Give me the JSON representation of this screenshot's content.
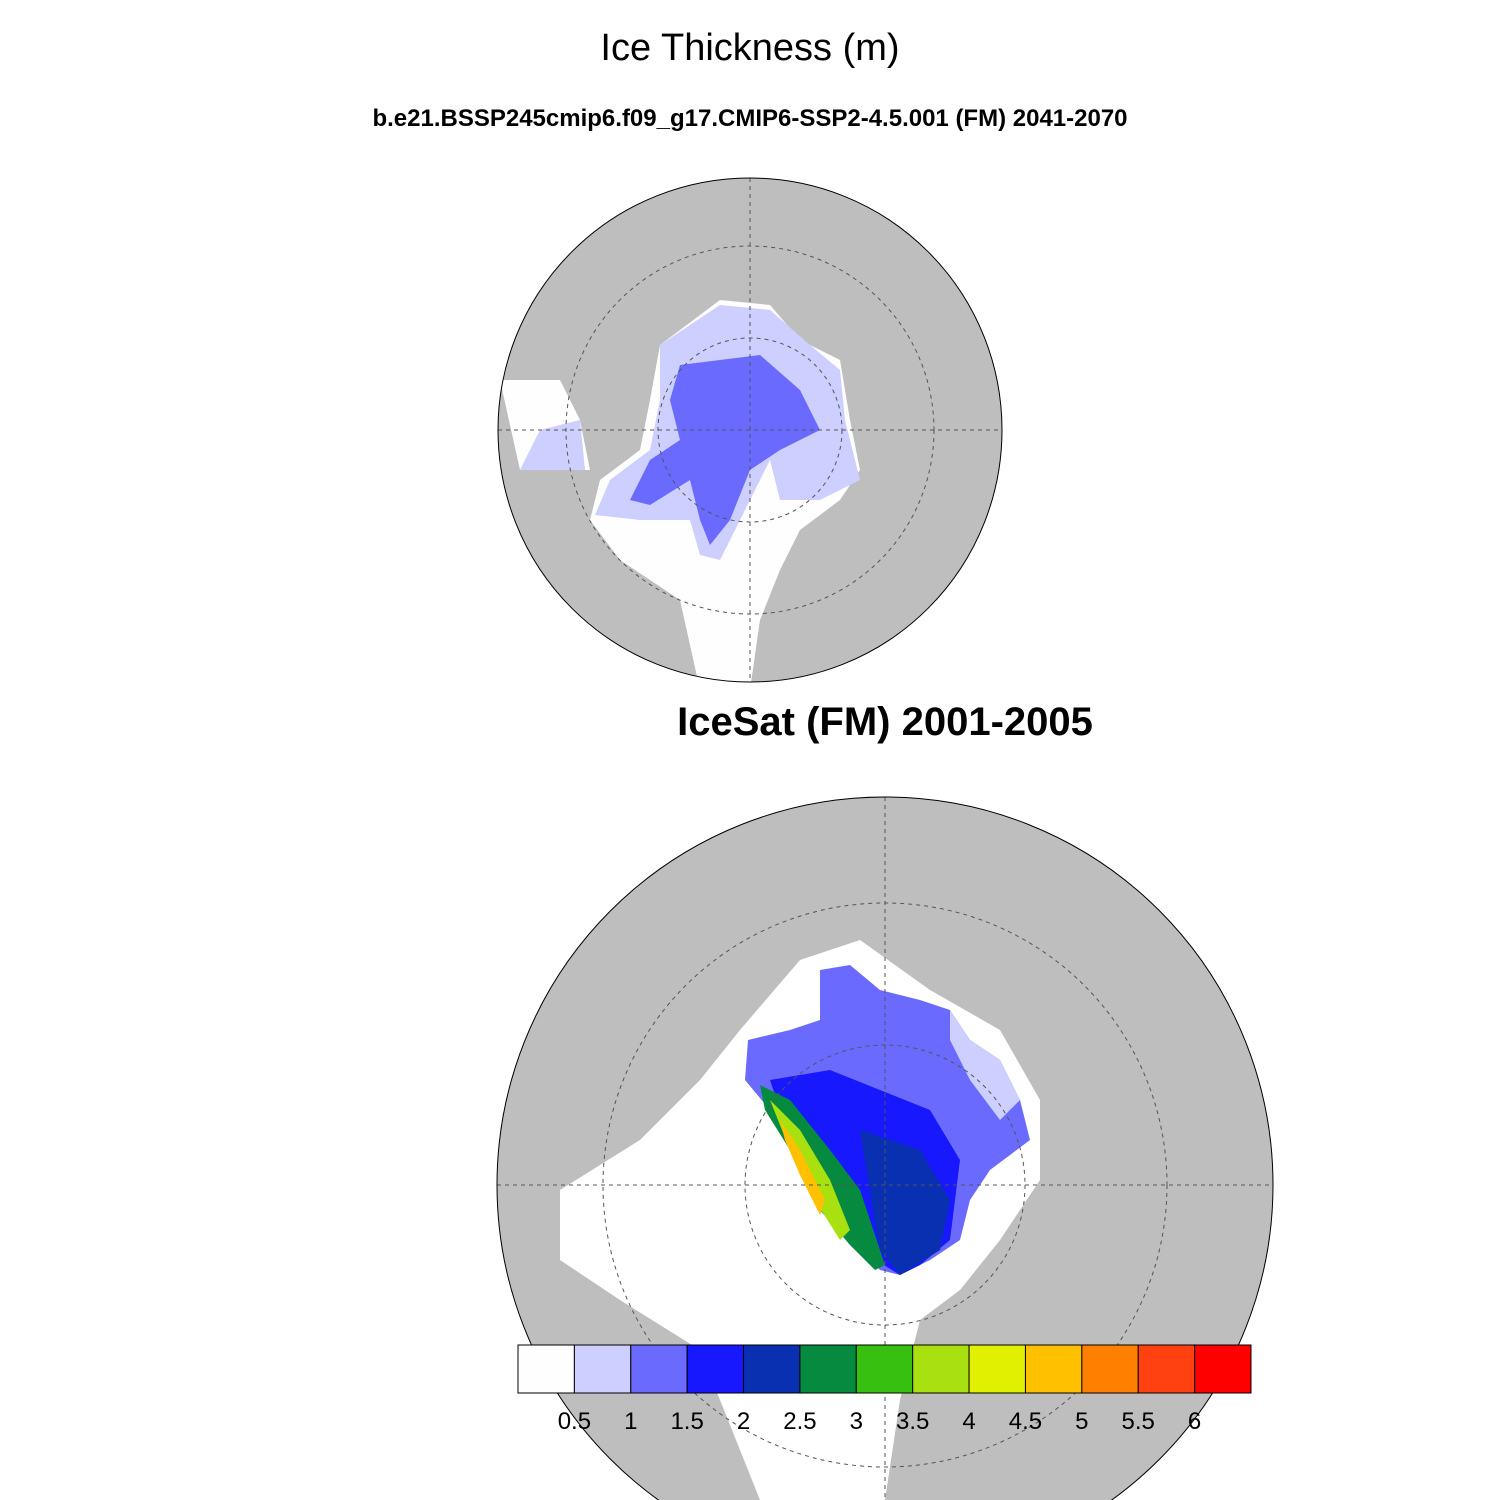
{
  "header": {
    "title": "Ice Thickness (m)",
    "subtitle": "b.e21.BSSP245cmip6.f09_g17.CMIP6-SSP2-4.5.001 (FM) 2041-2070"
  },
  "panel2": {
    "title": "IceSat (FM) 2001-2005"
  },
  "colorbar": {
    "levels": [
      0.5,
      1,
      1.5,
      2,
      2.5,
      3,
      3.5,
      4,
      4.5,
      5,
      5.5,
      6
    ],
    "colors": [
      "#fefefe",
      "#cccfff",
      "#6a6aff",
      "#1818ff",
      "#0830b0",
      "#068a40",
      "#38c010",
      "#a8e010",
      "#e0f000",
      "#ffc000",
      "#ff8000",
      "#ff4010",
      "#ff0000"
    ]
  }
}
